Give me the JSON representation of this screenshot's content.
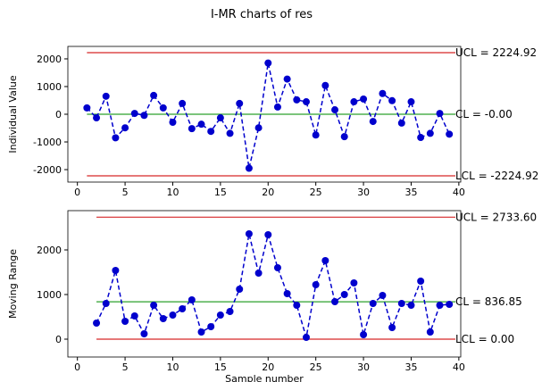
{
  "title": "I-MR charts of res",
  "chart_data": [
    {
      "type": "line",
      "ylabel": "Individual Value",
      "x": [
        1,
        2,
        3,
        4,
        5,
        6,
        7,
        8,
        9,
        10,
        11,
        12,
        13,
        14,
        15,
        16,
        17,
        18,
        19,
        20,
        21,
        22,
        23,
        24,
        25,
        26,
        27,
        28,
        29,
        30,
        31,
        32,
        33,
        34,
        35,
        36,
        37,
        38,
        39
      ],
      "series": [
        {
          "name": "Individual Value",
          "color": "#0000cd",
          "values": [
            230,
            -130,
            650,
            -850,
            -490,
            30,
            -40,
            680,
            230,
            -290,
            390,
            -520,
            -360,
            -620,
            -130,
            -690,
            390,
            -1950,
            -490,
            1850,
            260,
            1270,
            520,
            450,
            -750,
            1040,
            160,
            -810,
            450,
            550,
            -260,
            750,
            490,
            -320,
            450,
            -840,
            -690,
            30,
            -720
          ]
        }
      ],
      "limits": [
        {
          "label": "UCL = 2224.92",
          "value": 2224.92,
          "color": "#d62728"
        },
        {
          "label": "CL = -0.00",
          "value": 0,
          "color": "#2ca02c"
        },
        {
          "label": "LCL = -2224.92",
          "value": -2224.92,
          "color": "#d62728"
        }
      ],
      "xlim": [
        -1,
        40.2
      ],
      "xticks": [
        0,
        5,
        10,
        15,
        20,
        25,
        30,
        35,
        40
      ],
      "ylim": [
        -2450,
        2450
      ],
      "yticks": [
        -2000,
        -1000,
        0,
        1000,
        2000
      ]
    },
    {
      "type": "line",
      "ylabel": "Moving Range",
      "xlabel": "Sample number",
      "x": [
        2,
        3,
        4,
        5,
        6,
        7,
        8,
        9,
        10,
        11,
        12,
        13,
        14,
        15,
        16,
        17,
        18,
        19,
        20,
        21,
        22,
        23,
        24,
        25,
        26,
        27,
        28,
        29,
        30,
        31,
        32,
        33,
        34,
        35,
        36,
        37,
        38,
        39
      ],
      "series": [
        {
          "name": "Moving Range",
          "color": "#0000cd",
          "values": [
            360,
            800,
            1540,
            400,
            520,
            120,
            760,
            460,
            540,
            680,
            880,
            160,
            280,
            540,
            620,
            1120,
            2360,
            1480,
            2340,
            1600,
            1020,
            760,
            40,
            1220,
            1760,
            840,
            1000,
            1260,
            100,
            800,
            980,
            260,
            800,
            760,
            1300,
            160,
            760,
            780
          ]
        }
      ],
      "limits": [
        {
          "label": "UCL = 2733.60",
          "value": 2733.6,
          "color": "#d62728"
        },
        {
          "label": "CL = 836.85",
          "value": 836.85,
          "color": "#2ca02c"
        },
        {
          "label": "LCL = 0.00",
          "value": 0,
          "color": "#d62728"
        }
      ],
      "xlim": [
        -1,
        40.2
      ],
      "xticks": [
        0,
        5,
        10,
        15,
        20,
        25,
        30,
        35,
        40
      ],
      "ylim": [
        -400,
        2880
      ],
      "yticks": [
        0,
        1000,
        2000
      ]
    }
  ]
}
